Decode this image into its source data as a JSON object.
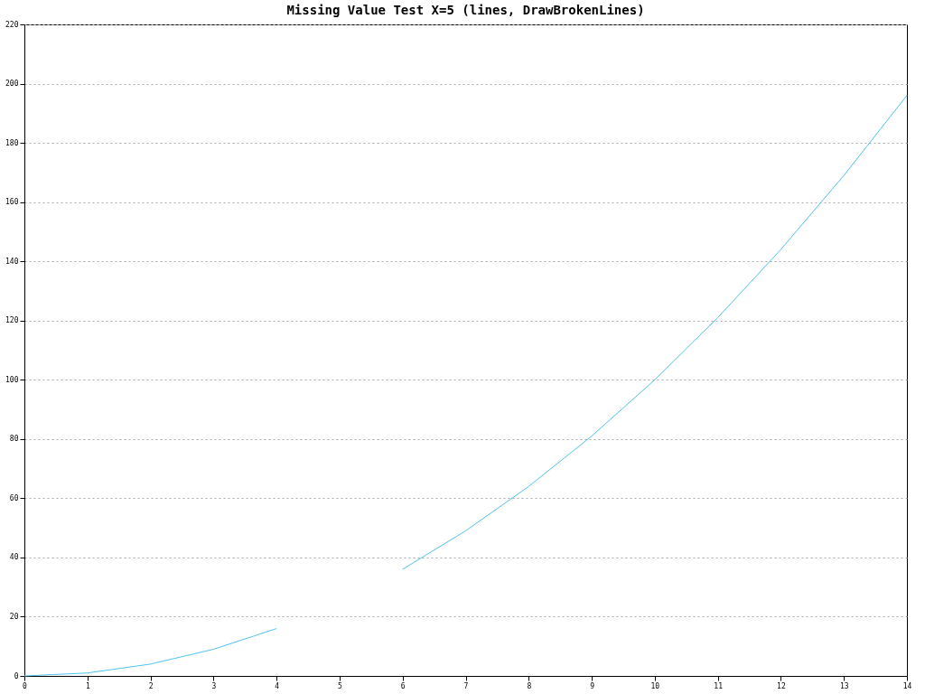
{
  "chart_data": {
    "type": "line",
    "title": "Missing Value Test X=5 (lines, DrawBrokenLines)",
    "x": [
      0,
      1,
      2,
      3,
      4,
      5,
      6,
      7,
      8,
      9,
      10,
      11,
      12,
      13,
      14
    ],
    "series": [
      {
        "color": "#4fc3ef",
        "values": [
          0,
          1,
          4,
          9,
          16,
          null,
          36,
          49,
          64,
          81,
          100,
          121,
          144,
          169,
          196
        ]
      }
    ],
    "xlim": [
      0,
      14
    ],
    "xticks": [
      0,
      1,
      2,
      3,
      4,
      5,
      6,
      7,
      8,
      9,
      10,
      11,
      12,
      13,
      14
    ],
    "ylim": [
      0,
      220
    ],
    "yticks": [
      0,
      20,
      40,
      60,
      80,
      100,
      120,
      140,
      160,
      180,
      200,
      220
    ],
    "grid": "y",
    "legend": false,
    "marker": "none",
    "line_style": "solid"
  }
}
